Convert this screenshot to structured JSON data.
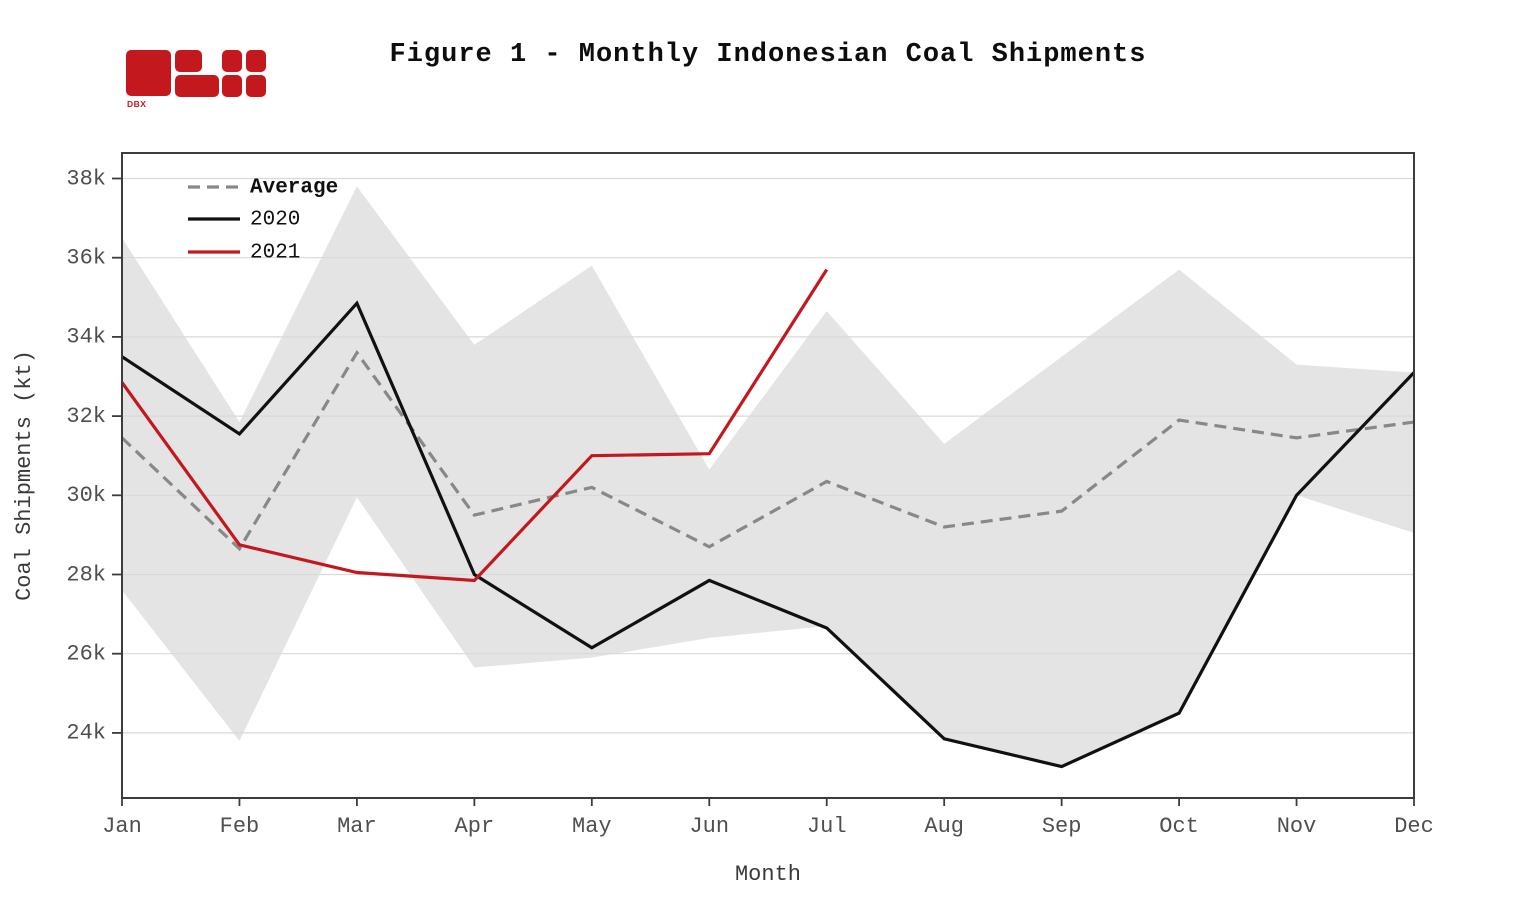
{
  "header": {
    "title": "Figure 1 - Monthly Indonesian Coal Shipments",
    "logo_text": "DBX"
  },
  "colors": {
    "accent_red": "#c3191e",
    "line_2020": "#111111",
    "line_average": "#888888",
    "band_fill": "#e4e4e4",
    "gridline": "#d9d9d9",
    "axis_spine": "#3c3c3c",
    "tick_label": "#4f4f4f",
    "axis_title": "#3a3a3a"
  },
  "chart_data": {
    "type": "line",
    "title": "Figure 1 - Monthly Indonesian Coal Shipments",
    "xlabel": "Month",
    "ylabel": "Coal Shipments (kt)",
    "categories": [
      "Jan",
      "Feb",
      "Mar",
      "Apr",
      "May",
      "Jun",
      "Jul",
      "Aug",
      "Sep",
      "Oct",
      "Nov",
      "Dec"
    ],
    "y_ticks_labels": [
      "24k",
      "26k",
      "28k",
      "30k",
      "32k",
      "34k",
      "36k",
      "38k"
    ],
    "y_tick_values": [
      24,
      26,
      28,
      30,
      32,
      34,
      36,
      38
    ],
    "values_unit": "thousand kt (axis 'k' units)",
    "ylim": [
      22.35,
      38.65
    ],
    "grid": "horizontal",
    "legend_position": "upper-left",
    "legend": [
      "Average",
      "2020",
      "2021"
    ],
    "series": [
      {
        "name": "Average",
        "style": "dashed",
        "color": "#888888",
        "values": [
          31.45,
          28.65,
          33.6,
          29.5,
          30.2,
          28.7,
          30.35,
          29.2,
          29.6,
          31.9,
          31.45,
          31.85
        ]
      },
      {
        "name": "2020",
        "style": "solid",
        "color": "#111111",
        "values": [
          33.5,
          31.55,
          34.85,
          28.0,
          26.15,
          27.85,
          26.65,
          23.85,
          23.15,
          24.5,
          30.0,
          33.1
        ]
      },
      {
        "name": "2021",
        "style": "solid",
        "color": "#c3191e",
        "values": [
          32.85,
          28.75,
          28.05,
          27.85,
          31.0,
          31.05,
          35.7,
          null,
          null,
          null,
          null,
          null
        ]
      }
    ],
    "band": {
      "name": "historical min-max range",
      "color": "#e4e4e4",
      "upper": [
        36.5,
        31.85,
        37.8,
        33.8,
        35.8,
        30.65,
        34.65,
        31.3,
        33.5,
        35.7,
        33.3,
        33.1
      ],
      "lower": [
        27.6,
        23.8,
        29.95,
        25.65,
        25.9,
        26.4,
        26.7,
        23.85,
        23.15,
        24.5,
        30.0,
        29.05
      ]
    }
  }
}
